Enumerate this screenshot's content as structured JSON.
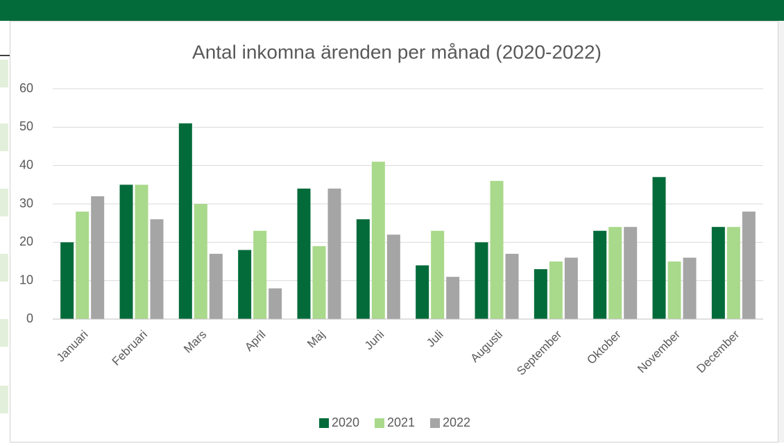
{
  "chart_data": {
    "type": "bar",
    "title": "Antal inkomna ärenden per månad (2020-2022)",
    "categories": [
      "Januari",
      "Februari",
      "Mars",
      "April",
      "Maj",
      "Juni",
      "Juli",
      "Augusti",
      "September",
      "Oktober",
      "November",
      "December"
    ],
    "series": [
      {
        "name": "2020",
        "color": "#036b3a",
        "values": [
          20,
          35,
          51,
          18,
          34,
          26,
          14,
          20,
          13,
          23,
          37,
          24
        ]
      },
      {
        "name": "2021",
        "color": "#a9d98b",
        "values": [
          28,
          35,
          30,
          23,
          19,
          41,
          23,
          36,
          15,
          24,
          15,
          24
        ]
      },
      {
        "name": "2022",
        "color": "#a5a5a5",
        "values": [
          32,
          26,
          17,
          8,
          34,
          22,
          11,
          17,
          16,
          24,
          16,
          28
        ]
      }
    ],
    "ylim": [
      0,
      60
    ],
    "yticks": [
      0,
      10,
      20,
      30,
      40,
      50,
      60
    ],
    "grid": true,
    "legend": "bottom"
  }
}
